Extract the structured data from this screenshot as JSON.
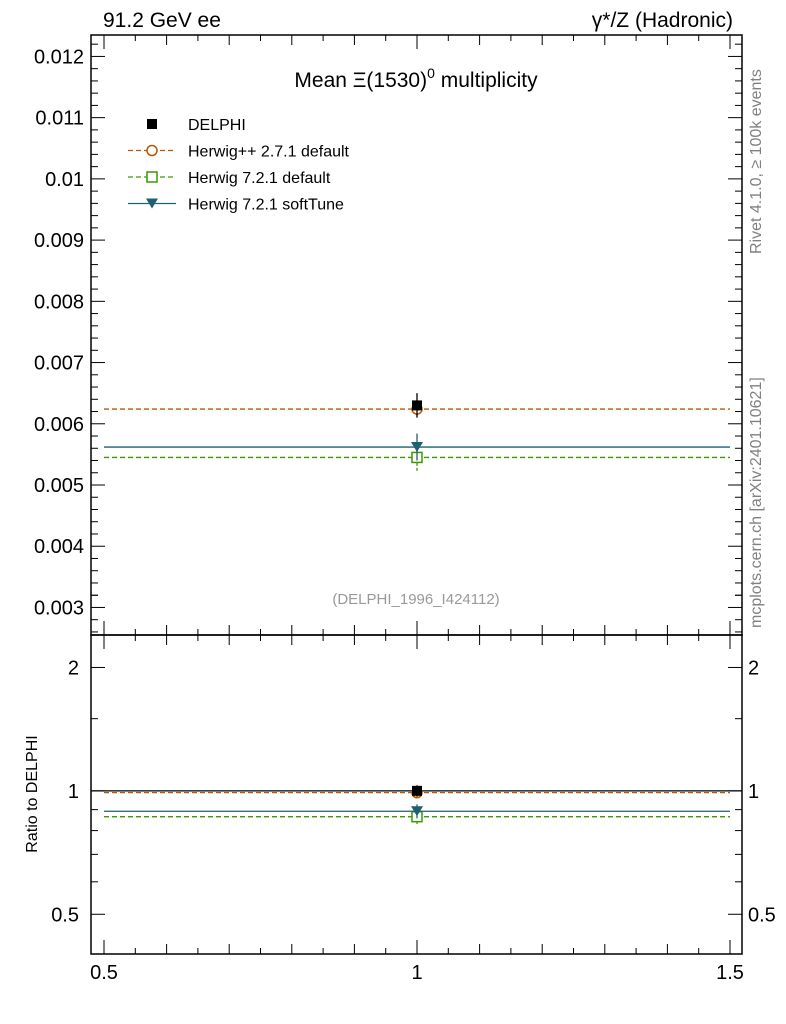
{
  "header": {
    "left": "91.2 GeV ee",
    "right": "γ*/Z (Hadronic)"
  },
  "side": {
    "rivet": "Rivet 4.1.0, ≥ 100k events",
    "mcplots": "mcplots.cern.ch [arXiv:2401.10621]"
  },
  "chart_data": {
    "type": "scatter",
    "title_main": "Mean Ξ(1530)",
    "title_sup": "0",
    "title_rest": " multiplicity",
    "analysis_tag": "(DELPHI_1996_I424112)",
    "x_range": [
      0.5,
      1.5
    ],
    "x_ticks": [
      "0.5",
      "1",
      "1.5"
    ],
    "upper": {
      "ylim": [
        0.00255,
        0.01235
      ],
      "y_ticks": [
        "0.003",
        "0.004",
        "0.005",
        "0.006",
        "0.007",
        "0.008",
        "0.009",
        "0.01",
        "0.011",
        "0.012"
      ]
    },
    "lower": {
      "ylabel": "Ratio to DELPHI",
      "ylim": [
        0.4,
        2.4
      ],
      "log": true,
      "y_ticks": [
        "0.5",
        "1",
        "2"
      ]
    },
    "series": [
      {
        "name": "DELPHI",
        "style": "data",
        "color": "#000000",
        "x": 1,
        "y": 0.0063,
        "err": 0.0002,
        "ratio": 1.0,
        "ratio_err": 0.032
      },
      {
        "name": "Herwig++ 2.7.1 default",
        "style": "circle",
        "color": "#b35900",
        "x": 1,
        "y": 0.00624,
        "err": 0.00012,
        "ratio": 0.99,
        "ratio_err": 0.019
      },
      {
        "name": "Herwig 7.2.1 default",
        "style": "square",
        "color": "#3a9a00",
        "x": 1,
        "y": 0.00545,
        "err": 0.00022,
        "ratio": 0.865,
        "ratio_err": 0.035
      },
      {
        "name": "Herwig 7.2.1 softTune",
        "style": "triangle",
        "color": "#1f5f6f",
        "x": 1,
        "y": 0.00562,
        "err": 0.00022,
        "ratio": 0.892,
        "ratio_err": 0.035
      }
    ]
  }
}
